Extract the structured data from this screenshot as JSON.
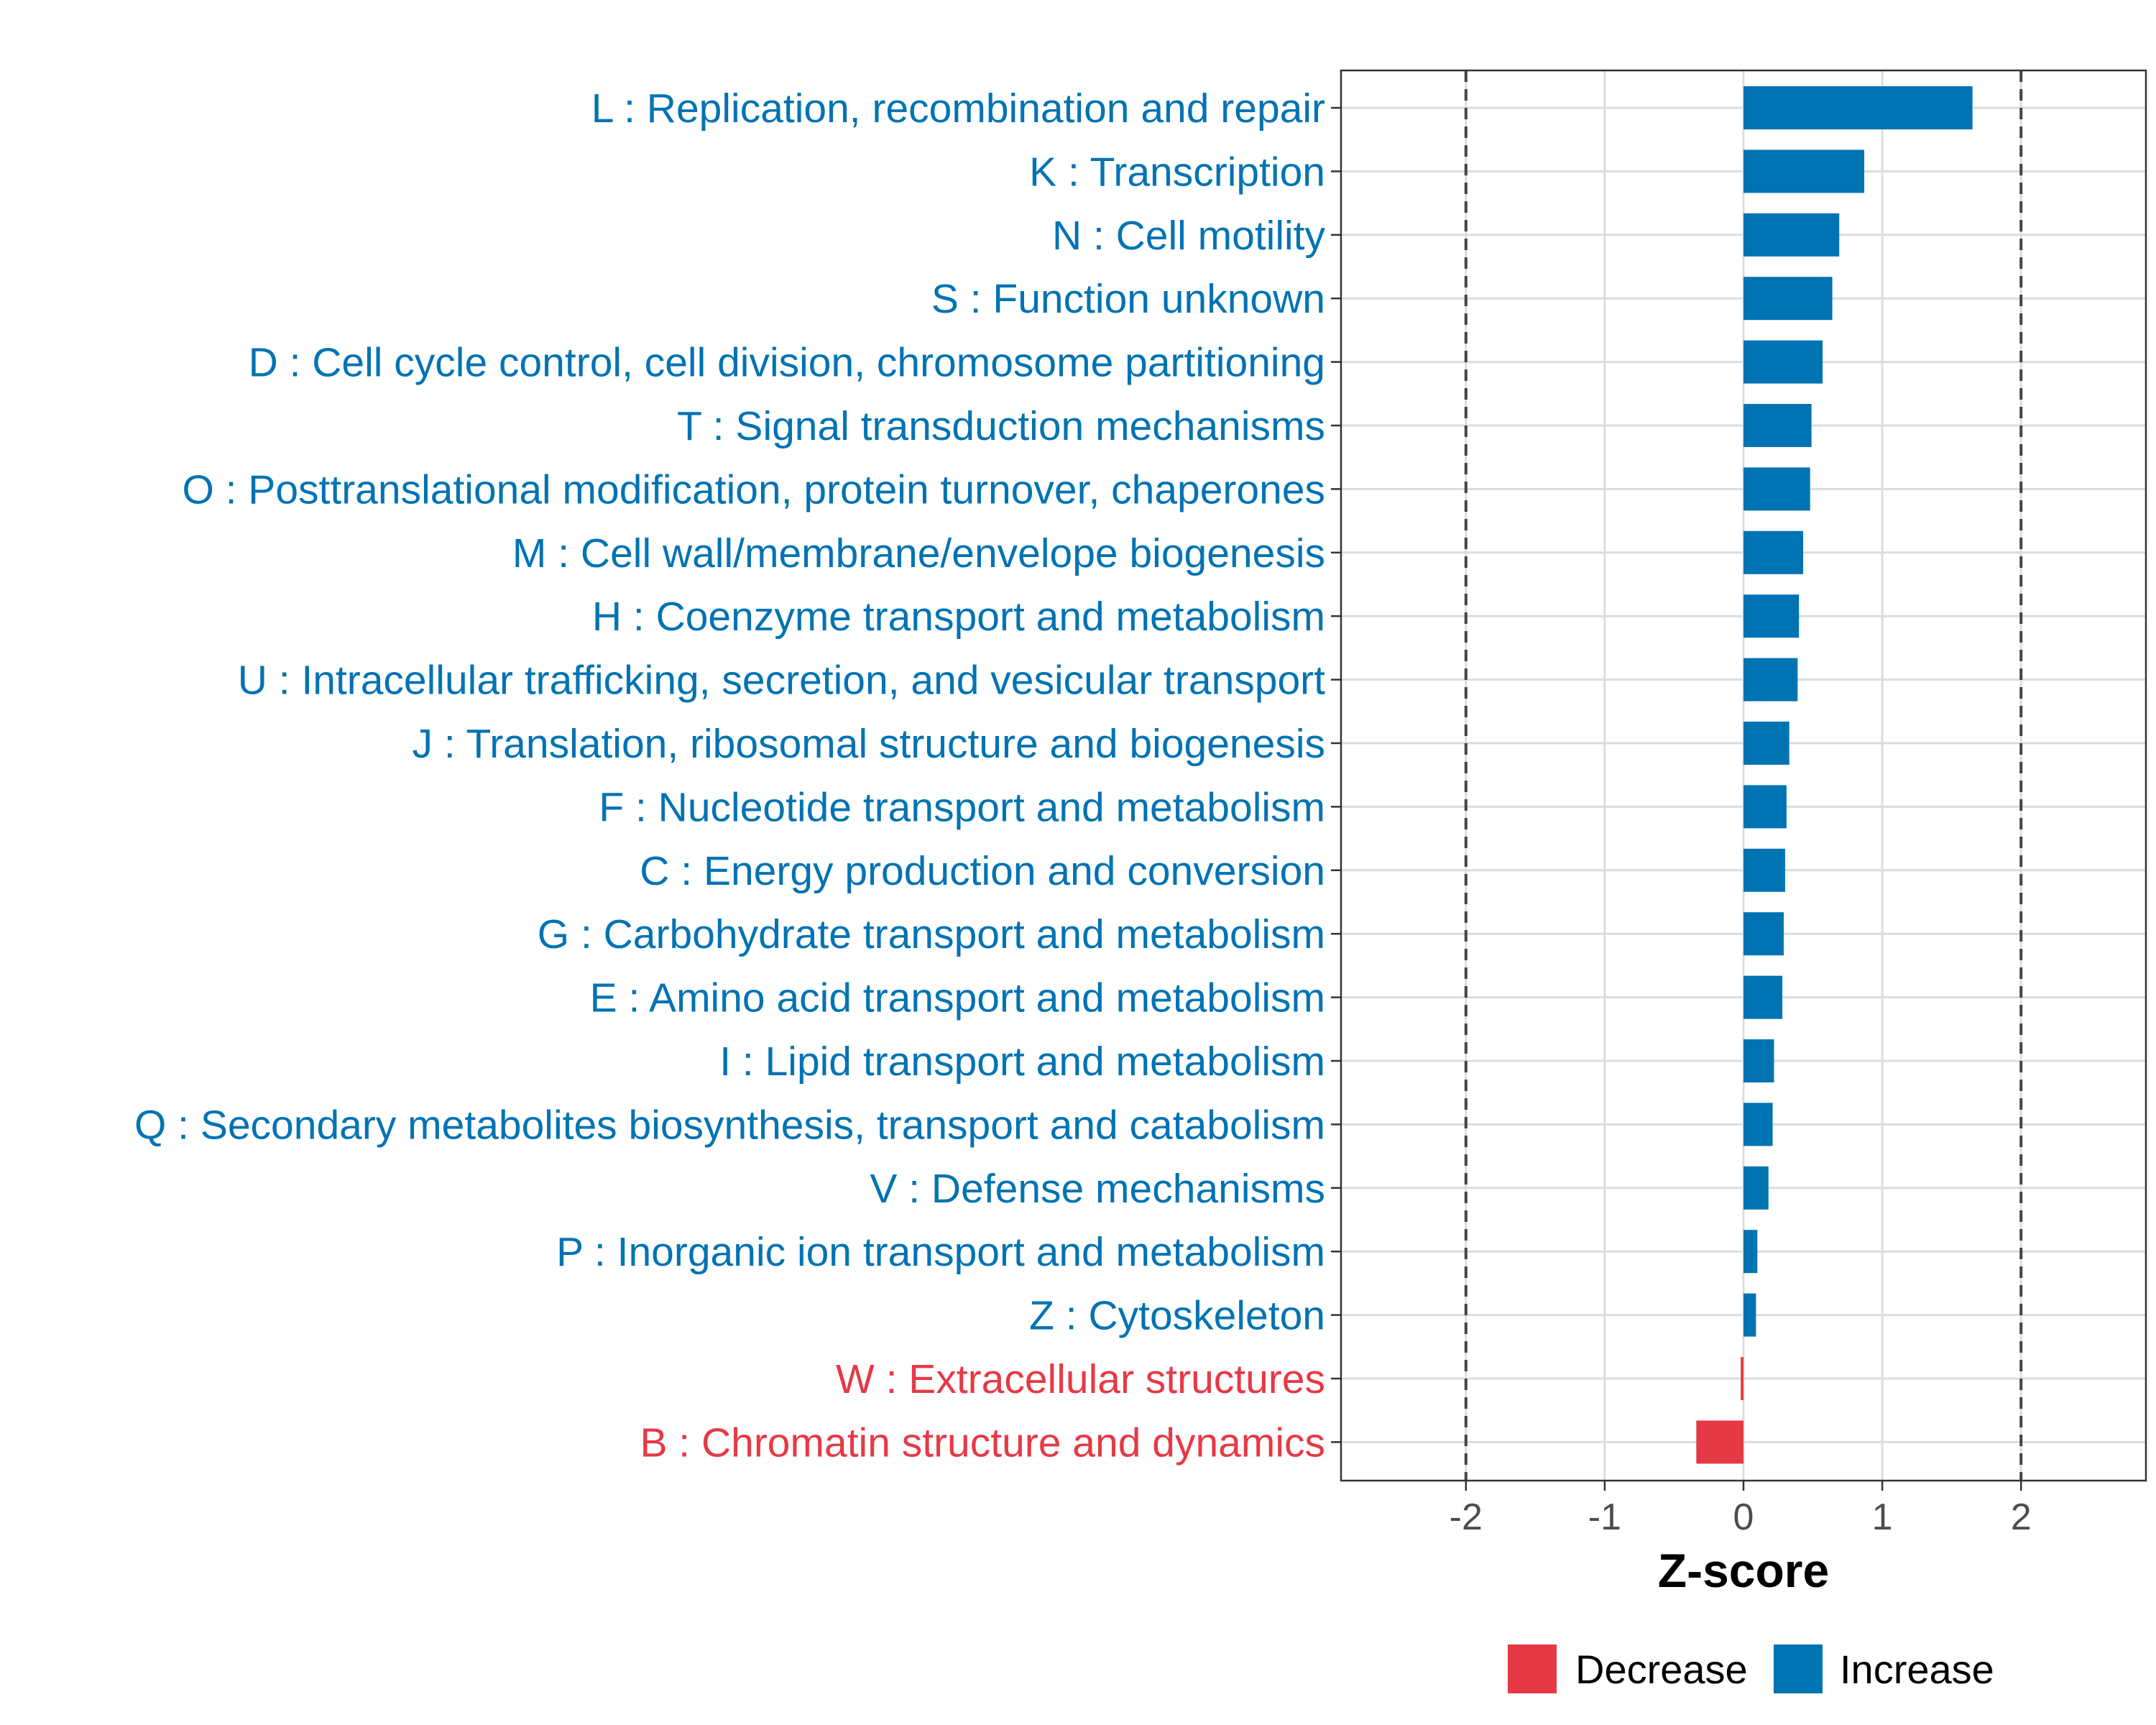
{
  "chart_data": {
    "type": "bar",
    "orientation": "horizontal",
    "xlabel": "Z-score",
    "ylabel": "",
    "xlim": [
      -2.9,
      2.9
    ],
    "xticks": [
      "-2",
      "-1",
      "0",
      "1",
      "2"
    ],
    "xtick_values": [
      -2,
      -1,
      0,
      1,
      2
    ],
    "reference_lines": [
      -2,
      2
    ],
    "grid": true,
    "colors": {
      "Increase": "#0073b3",
      "Decrease": "#e63946"
    },
    "legend": {
      "position": "bottom",
      "items": [
        {
          "label": "Decrease",
          "color": "#e63946"
        },
        {
          "label": "Increase",
          "color": "#0073b3"
        }
      ]
    },
    "bars": [
      {
        "label": "L : Replication, recombination and repair",
        "value": 1.65,
        "direction": "Increase"
      },
      {
        "label": "K : Transcription",
        "value": 0.87,
        "direction": "Increase"
      },
      {
        "label": "N : Cell motility",
        "value": 0.69,
        "direction": "Increase"
      },
      {
        "label": "S : Function unknown",
        "value": 0.64,
        "direction": "Increase"
      },
      {
        "label": "D : Cell cycle control, cell division, chromosome partitioning",
        "value": 0.57,
        "direction": "Increase"
      },
      {
        "label": "T : Signal transduction mechanisms",
        "value": 0.49,
        "direction": "Increase"
      },
      {
        "label": "O : Posttranslational modification, protein turnover, chaperones",
        "value": 0.48,
        "direction": "Increase"
      },
      {
        "label": "M : Cell wall/membrane/envelope biogenesis",
        "value": 0.43,
        "direction": "Increase"
      },
      {
        "label": "H : Coenzyme transport and metabolism",
        "value": 0.4,
        "direction": "Increase"
      },
      {
        "label": "U : Intracellular trafficking, secretion, and vesicular transport",
        "value": 0.39,
        "direction": "Increase"
      },
      {
        "label": "J : Translation, ribosomal structure and biogenesis",
        "value": 0.33,
        "direction": "Increase"
      },
      {
        "label": "F : Nucleotide transport and metabolism",
        "value": 0.31,
        "direction": "Increase"
      },
      {
        "label": "C : Energy production and conversion",
        "value": 0.3,
        "direction": "Increase"
      },
      {
        "label": "G : Carbohydrate transport and metabolism",
        "value": 0.29,
        "direction": "Increase"
      },
      {
        "label": "E : Amino acid transport and metabolism",
        "value": 0.28,
        "direction": "Increase"
      },
      {
        "label": "I : Lipid transport and metabolism",
        "value": 0.22,
        "direction": "Increase"
      },
      {
        "label": "Q : Secondary metabolites biosynthesis, transport and catabolism",
        "value": 0.21,
        "direction": "Increase"
      },
      {
        "label": "V : Defense mechanisms",
        "value": 0.18,
        "direction": "Increase"
      },
      {
        "label": "P : Inorganic ion transport and metabolism",
        "value": 0.1,
        "direction": "Increase"
      },
      {
        "label": "Z : Cytoskeleton",
        "value": 0.09,
        "direction": "Increase"
      },
      {
        "label": "W : Extracellular structures",
        "value": -0.02,
        "direction": "Decrease"
      },
      {
        "label": "B : Chromatin structure and dynamics",
        "value": -0.34,
        "direction": "Decrease"
      }
    ]
  }
}
